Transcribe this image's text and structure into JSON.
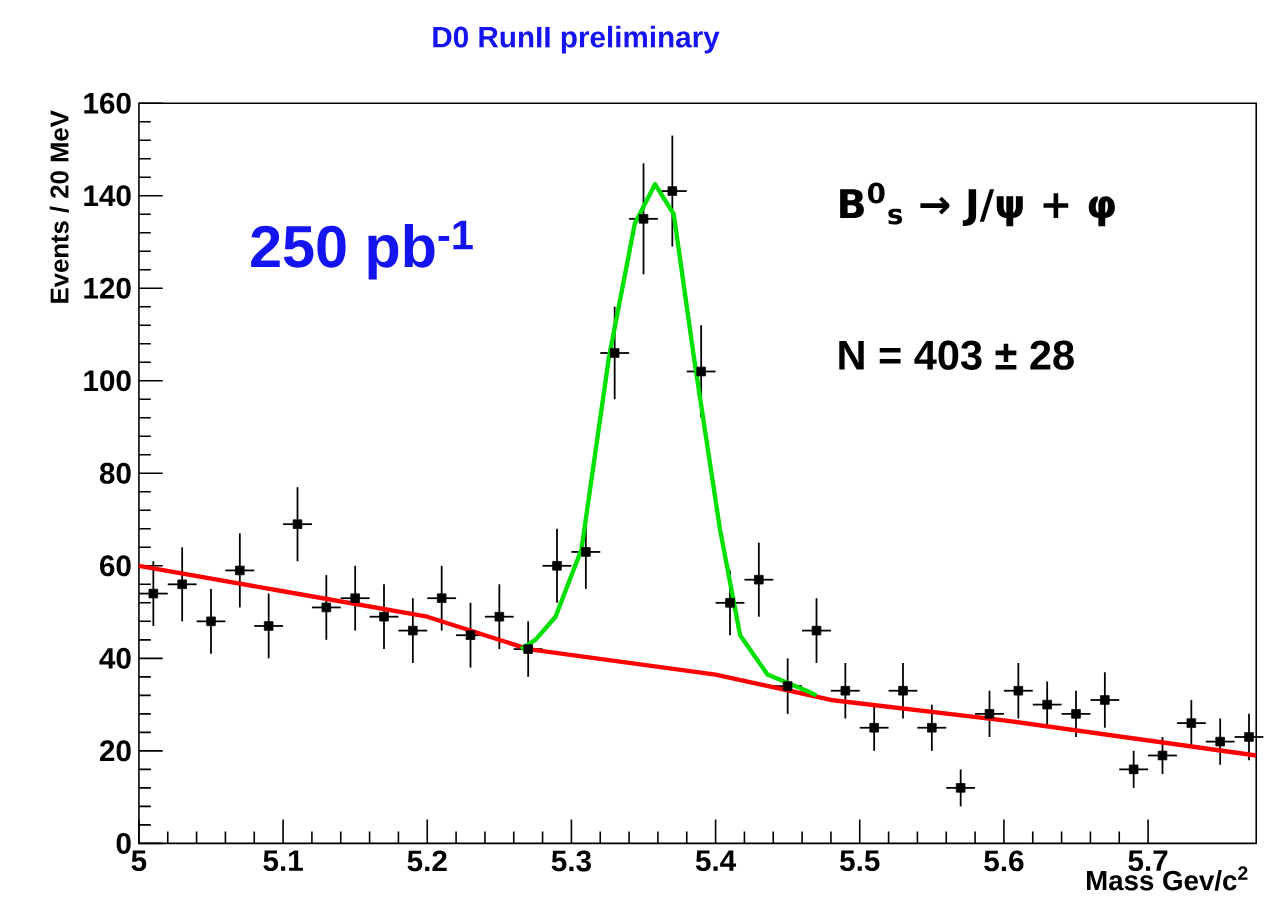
{
  "chart_data": {
    "type": "scatter",
    "title": "D0 RunII preliminary",
    "xlabel": "Mass Gev/c$^{2}$",
    "ylabel": "Events / 20 MeV",
    "annotations": [
      "250 pb$^{-1}$",
      "B$^{0}$$_{s}$ → J/ψ + φ",
      "N = 403 ± 28"
    ],
    "xlim": [
      5,
      5.775
    ],
    "ylim": [
      0,
      160
    ],
    "xticks": [
      5,
      5.1,
      5.2,
      5.3,
      5.4,
      5.5,
      5.6,
      5.7
    ],
    "yticks": [
      0,
      20,
      40,
      60,
      80,
      100,
      120,
      140,
      160
    ],
    "grid": false,
    "marker": "square",
    "series": [
      {
        "color": "#000000",
        "x": [
          5.01,
          5.03,
          5.05,
          5.07,
          5.09,
          5.11,
          5.13,
          5.15,
          5.17,
          5.19,
          5.21,
          5.23,
          5.25,
          5.27,
          5.29,
          5.31,
          5.33,
          5.35,
          5.37,
          5.39,
          5.41,
          5.43,
          5.45,
          5.47,
          5.49,
          5.51,
          5.53,
          5.55,
          5.57,
          5.59,
          5.61,
          5.63,
          5.65,
          5.67,
          5.69,
          5.71,
          5.73,
          5.75,
          5.77
        ],
        "values": [
          54,
          56,
          48,
          59,
          47,
          69,
          51,
          53,
          49,
          46,
          53,
          45,
          49,
          42,
          60,
          63,
          106,
          135,
          141,
          102,
          52,
          57,
          34,
          46,
          33,
          25,
          33,
          25,
          12,
          28,
          33,
          30,
          28,
          31,
          16,
          19,
          26,
          22,
          23
        ],
        "errors": [
          7,
          8,
          7,
          8,
          7,
          8,
          7,
          7,
          7,
          7,
          7,
          7,
          7,
          6,
          8,
          8,
          10,
          12,
          12,
          10,
          7,
          8,
          6,
          7,
          6,
          5,
          6,
          5,
          4,
          5,
          6,
          5,
          5,
          6,
          4,
          4,
          5,
          5,
          5
        ],
        "xerrors": [
          0.01,
          0.01,
          0.01,
          0.01,
          0.01,
          0.01,
          0.01,
          0.01,
          0.01,
          0.01,
          0.01,
          0.01,
          0.01,
          0.01,
          0.01,
          0.01,
          0.01,
          0.01,
          0.01,
          0.01,
          0.01,
          0.01,
          0.01,
          0.01,
          0.01,
          0.01,
          0.01,
          0.01,
          0.01,
          0.01,
          0.01,
          0.01,
          0.01,
          0.01,
          0.01,
          0.01,
          0.01,
          0.01,
          0.01
        ]
      },
      {
        "type": "line",
        "color": "#ff0000",
        "marker": "none",
        "x": [
          5.0,
          5.1,
          5.2,
          5.27,
          5.4,
          5.48,
          5.6,
          5.775
        ],
        "values": [
          60,
          54.5,
          49,
          42,
          36.5,
          31,
          26.6,
          19
        ]
      },
      {
        "type": "line",
        "color": "#00e000",
        "marker": "none",
        "x": [
          5.265,
          5.275,
          5.289,
          5.307,
          5.326,
          5.344,
          5.358,
          5.371,
          5.385,
          5.403,
          5.417,
          5.436,
          5.463,
          5.47
        ],
        "values": [
          42,
          44,
          49,
          63.6,
          105,
          134,
          142.5,
          136,
          105,
          68,
          45,
          36.5,
          33,
          32
        ]
      }
    ]
  }
}
